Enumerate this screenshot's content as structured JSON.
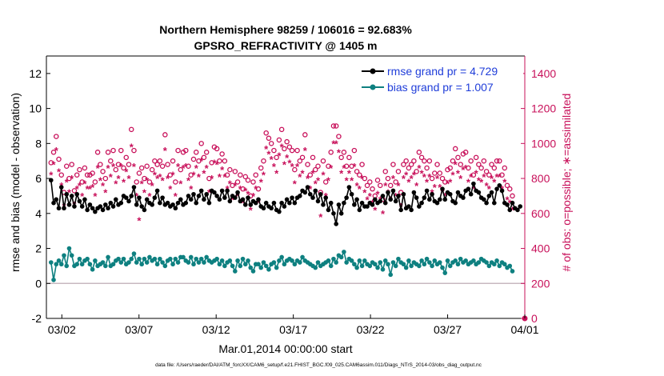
{
  "chart_data": {
    "type": "line",
    "title_line1": "Northern Hemisphere 98259 / 106016 = 92.683%",
    "title_line2": "GPSRO_REFRACTIVITY @ 1405 m",
    "ylabel_left": "rmse and bias (model - observation)",
    "ylabel_right": "# of obs: o=possible; ∗=assimilated",
    "xlabel": "Mar.01,2014 00:00:00 start",
    "footnote": "data file: /Users/raeder/DAI/ATM_forcXX/CAM6_setup/f.e21.FHIST_BGC.f09_025.CAM6assim.011/Diags_NTrS_2014-03/obs_diag_output.nc",
    "xlim": [
      0,
      31
    ],
    "ylim_left": [
      -2,
      13
    ],
    "ylim_right": [
      0,
      1500
    ],
    "x_ticks": [
      {
        "value": 1,
        "label": "03/02"
      },
      {
        "value": 6,
        "label": "03/07"
      },
      {
        "value": 11,
        "label": "03/12"
      },
      {
        "value": 16,
        "label": "03/17"
      },
      {
        "value": 21,
        "label": "03/22"
      },
      {
        "value": 26,
        "label": "03/27"
      },
      {
        "value": 31,
        "label": "04/01"
      }
    ],
    "y_left_ticks": [
      -2,
      0,
      2,
      4,
      6,
      8,
      10,
      12
    ],
    "y_right_ticks": [
      0,
      200,
      400,
      600,
      800,
      1000,
      1200,
      1400
    ],
    "legend": [
      {
        "name": "rmse grand pr = 4.729",
        "color": "#000000"
      },
      {
        "name": "bias grand pr = 1.007",
        "color": "#0e8080"
      }
    ],
    "colors": {
      "rmse": "#000000",
      "bias": "#0e8080",
      "obs": "#c8105a",
      "zero_line": "#c8b8c0"
    },
    "series": [
      {
        "name": "rmse",
        "axis": "left",
        "values": [
          5.9,
          4.6,
          4.8,
          4.3,
          5.5,
          4.3,
          5.1,
          4.5,
          5.0,
          4.4,
          5.1,
          4.7,
          4.4,
          4.8,
          4.2,
          4.5,
          4.3,
          4.1,
          4.3,
          4.4,
          4.2,
          4.5,
          4.3,
          4.6,
          4.4,
          4.8,
          4.5,
          4.6,
          5.0,
          4.9,
          4.7,
          5.0,
          5.5,
          4.5,
          4.9,
          4.4,
          4.2,
          4.8,
          4.6,
          4.5,
          4.9,
          5.3,
          4.6,
          4.9,
          4.5,
          4.6,
          4.4,
          4.5,
          4.3,
          4.6,
          4.8,
          4.5,
          4.6,
          5.0,
          4.8,
          5.1,
          4.6,
          5.0,
          5.3,
          4.8,
          5.1,
          4.6,
          5.3,
          5.2,
          5.0,
          4.8,
          5.3,
          4.9,
          5.3,
          4.7,
          5.0,
          4.9,
          5.2,
          4.7,
          4.8,
          4.5,
          4.9,
          4.5,
          4.7,
          4.6,
          4.8,
          4.4,
          4.3,
          4.6,
          4.4,
          4.3,
          4.6,
          4.2,
          4.1,
          4.6,
          4.4,
          4.8,
          4.6,
          4.9,
          4.6,
          4.9,
          5.0,
          5.3,
          5.2,
          5.5,
          5.1,
          4.9,
          5.3,
          4.7,
          5.1,
          4.5,
          4.9,
          4.2,
          4.6,
          4.0,
          3.4,
          4.5,
          4.0,
          4.6,
          4.9,
          5.5,
          5.1,
          4.5,
          4.8,
          4.2,
          4.6,
          4.4,
          4.4,
          4.6,
          4.5,
          4.8,
          4.6,
          4.7,
          5.0,
          4.6,
          5.2,
          4.8,
          5.3,
          4.7,
          5.0,
          4.2,
          5.1,
          4.3,
          4.4,
          4.2,
          5.2,
          4.9,
          4.4,
          4.6,
          4.9,
          5.3,
          4.8,
          5.1,
          4.7,
          4.6,
          4.8,
          5.4,
          4.8,
          5.2,
          5.1,
          4.7,
          4.6,
          5.2,
          5.0,
          4.9,
          5.3,
          5.4,
          5.1,
          5.7,
          5.3,
          5.2,
          4.9,
          4.8,
          4.6,
          5.0,
          5.2,
          4.6,
          5.4,
          5.6,
          5.3,
          4.6,
          4.5,
          4.2,
          4.6,
          4.3,
          4.2,
          4.4
        ]
      },
      {
        "name": "bias",
        "axis": "left",
        "values": [
          1.2,
          0.2,
          1.1,
          1.3,
          1.1,
          1.6,
          1.0,
          2.0,
          1.6,
          1.0,
          1.1,
          1.4,
          1.1,
          1.3,
          1.4,
          1.1,
          0.8,
          1.3,
          1.0,
          1.1,
          1.2,
          1.0,
          1.5,
          1.0,
          1.1,
          1.3,
          1.4,
          1.2,
          1.4,
          1.1,
          1.2,
          1.4,
          1.7,
          1.2,
          1.4,
          1.1,
          1.4,
          1.2,
          1.5,
          1.3,
          1.4,
          1.1,
          1.4,
          1.2,
          1.0,
          1.3,
          1.4,
          1.1,
          1.4,
          1.2,
          1.5,
          1.5,
          1.3,
          1.2,
          1.5,
          1.1,
          1.4,
          1.2,
          1.4,
          1.2,
          1.5,
          1.3,
          1.2,
          1.3,
          1.4,
          1.1,
          1.3,
          1.0,
          1.2,
          1.3,
          1.0,
          0.7,
          1.3,
          1.0,
          1.4,
          1.1,
          1.3,
          0.9,
          0.7,
          1.1,
          1.1,
          0.9,
          1.2,
          1.0,
          0.8,
          1.1,
          1.2,
          0.9,
          1.3,
          1.5,
          1.1,
          1.3,
          1.4,
          1.3,
          1.1,
          1.3,
          1.2,
          1.5,
          1.3,
          1.2,
          1.1,
          1.0,
          0.9,
          1.2,
          1.0,
          1.1,
          1.2,
          1.3,
          1.0,
          1.4,
          1.2,
          1.6,
          1.5,
          1.8,
          1.2,
          1.4,
          1.3,
          1.1,
          0.9,
          1.3,
          1.0,
          1.3,
          1.1,
          1.0,
          1.2,
          1.1,
          0.9,
          1.2,
          0.8,
          1.3,
          1.1,
          0.5,
          1.2,
          1.0,
          1.4,
          1.2,
          1.1,
          0.9,
          1.3,
          1.0,
          1.2,
          1.1,
          1.0,
          1.3,
          1.1,
          1.4,
          1.2,
          1.0,
          1.3,
          1.1,
          1.2,
          0.9,
          0.6,
          1.3,
          1.0,
          1.2,
          1.3,
          1.1,
          1.4,
          1.2,
          1.3,
          1.1,
          1.2,
          1.3,
          1.1,
          1.2,
          1.4,
          1.3,
          1.2,
          1.0,
          1.2,
          1.1,
          1.3,
          1.0,
          1.2,
          1.1,
          0.9,
          1.0,
          0.7
        ]
      },
      {
        "name": "possible",
        "axis": "right",
        "values": [
          890,
          950,
          1040,
          910,
          820,
          720,
          870,
          800,
          880,
          730,
          820,
          850,
          780,
          860,
          820,
          820,
          830,
          780,
          950,
          880,
          840,
          800,
          950,
          900,
          960,
          850,
          880,
          960,
          860,
          920,
          880,
          1080,
          960,
          780,
          830,
          860,
          800,
          870,
          780,
          850,
          900,
          880,
          900,
          870,
          1050,
          880,
          820,
          900,
          780,
          960,
          850,
          950,
          960,
          870,
          820,
          910,
          950,
          900,
          1000,
          920,
          950,
          800,
          890,
          980,
          970,
          900,
          940,
          900,
          820,
          850,
          760,
          840,
          780,
          820,
          740,
          810,
          790,
          700,
          780,
          820,
          740,
          860,
          900,
          1060,
          1030,
          1000,
          960,
          920,
          1020,
          1080,
          970,
          1010,
          980,
          960,
          850,
          960,
          900,
          920,
          1050,
          880,
          820,
          920,
          850,
          870,
          720,
          900,
          780,
          870,
          950,
          1100,
          1100,
          1040,
          920,
          950,
          870,
          920,
          870,
          960,
          840,
          820,
          880,
          800,
          760,
          780,
          740,
          700,
          790,
          760,
          680,
          840,
          800,
          760,
          880,
          780,
          840,
          720,
          880,
          900,
          860,
          880,
          900,
          840,
          950,
          920,
          900,
          860,
          900,
          800,
          830,
          880,
          830,
          800,
          780,
          850,
          860,
          900,
          970,
          920,
          880,
          940,
          950,
          860,
          900,
          820,
          920,
          880,
          860,
          900,
          840,
          820,
          880,
          860,
          900,
          900,
          820,
          860,
          760,
          740,
          700
        ]
      },
      {
        "name": "assimilated",
        "axis": "right",
        "values": [
          820,
          880,
          960,
          840,
          760,
          640,
          780,
          720,
          800,
          650,
          740,
          760,
          700,
          770,
          740,
          740,
          750,
          700,
          860,
          790,
          760,
          720,
          860,
          810,
          870,
          770,
          800,
          870,
          780,
          840,
          800,
          980,
          870,
          700,
          560,
          770,
          720,
          790,
          700,
          760,
          820,
          800,
          810,
          790,
          960,
          800,
          740,
          820,
          700,
          870,
          770,
          860,
          870,
          790,
          740,
          820,
          860,
          810,
          900,
          830,
          860,
          720,
          800,
          890,
          880,
          810,
          850,
          810,
          740,
          770,
          680,
          760,
          700,
          740,
          660,
          730,
          710,
          620,
          700,
          740,
          660,
          780,
          820,
          970,
          940,
          910,
          870,
          830,
          930,
          980,
          880,
          920,
          890,
          870,
          770,
          870,
          810,
          830,
          960,
          800,
          740,
          830,
          770,
          790,
          580,
          820,
          700,
          790,
          860,
          1000,
          1000,
          950,
          830,
          860,
          790,
          830,
          790,
          870,
          760,
          740,
          800,
          720,
          680,
          700,
          660,
          620,
          710,
          680,
          600,
          760,
          720,
          680,
          800,
          700,
          760,
          640,
          800,
          820,
          780,
          800,
          820,
          760,
          860,
          830,
          810,
          780,
          810,
          720,
          750,
          800,
          750,
          720,
          700,
          770,
          780,
          820,
          880,
          830,
          800,
          850,
          860,
          780,
          810,
          740,
          830,
          790,
          780,
          810,
          760,
          740,
          800,
          780,
          810,
          810,
          740,
          780,
          680,
          660,
          620
        ]
      }
    ]
  }
}
